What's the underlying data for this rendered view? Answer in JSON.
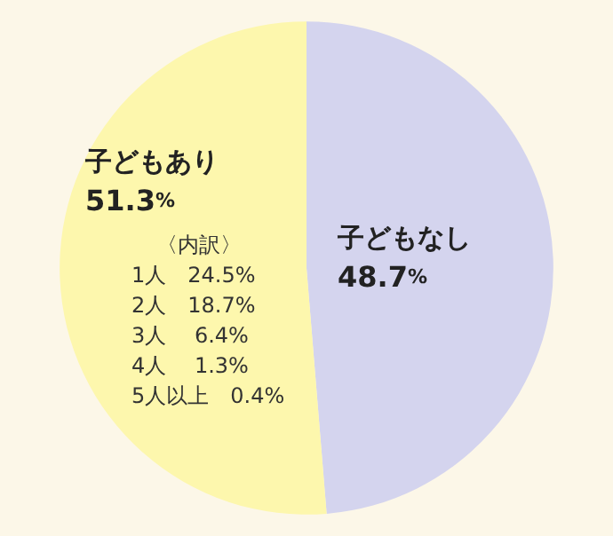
{
  "chart_data": {
    "type": "pie",
    "categories": [
      "子どもなし",
      "子どもあり"
    ],
    "values": [
      48.7,
      51.3
    ],
    "colors": [
      "#d4d4ee",
      "#fdf7ad"
    ],
    "value_labels": [
      "48.7%",
      "51.3%"
    ],
    "legend": false,
    "annotations": [
      "〈内訳〉",
      "1人　24.5%",
      "2人　18.7%",
      "3人　 6.4%",
      "4人　 1.3%",
      "5人以上　0.4%"
    ]
  }
}
